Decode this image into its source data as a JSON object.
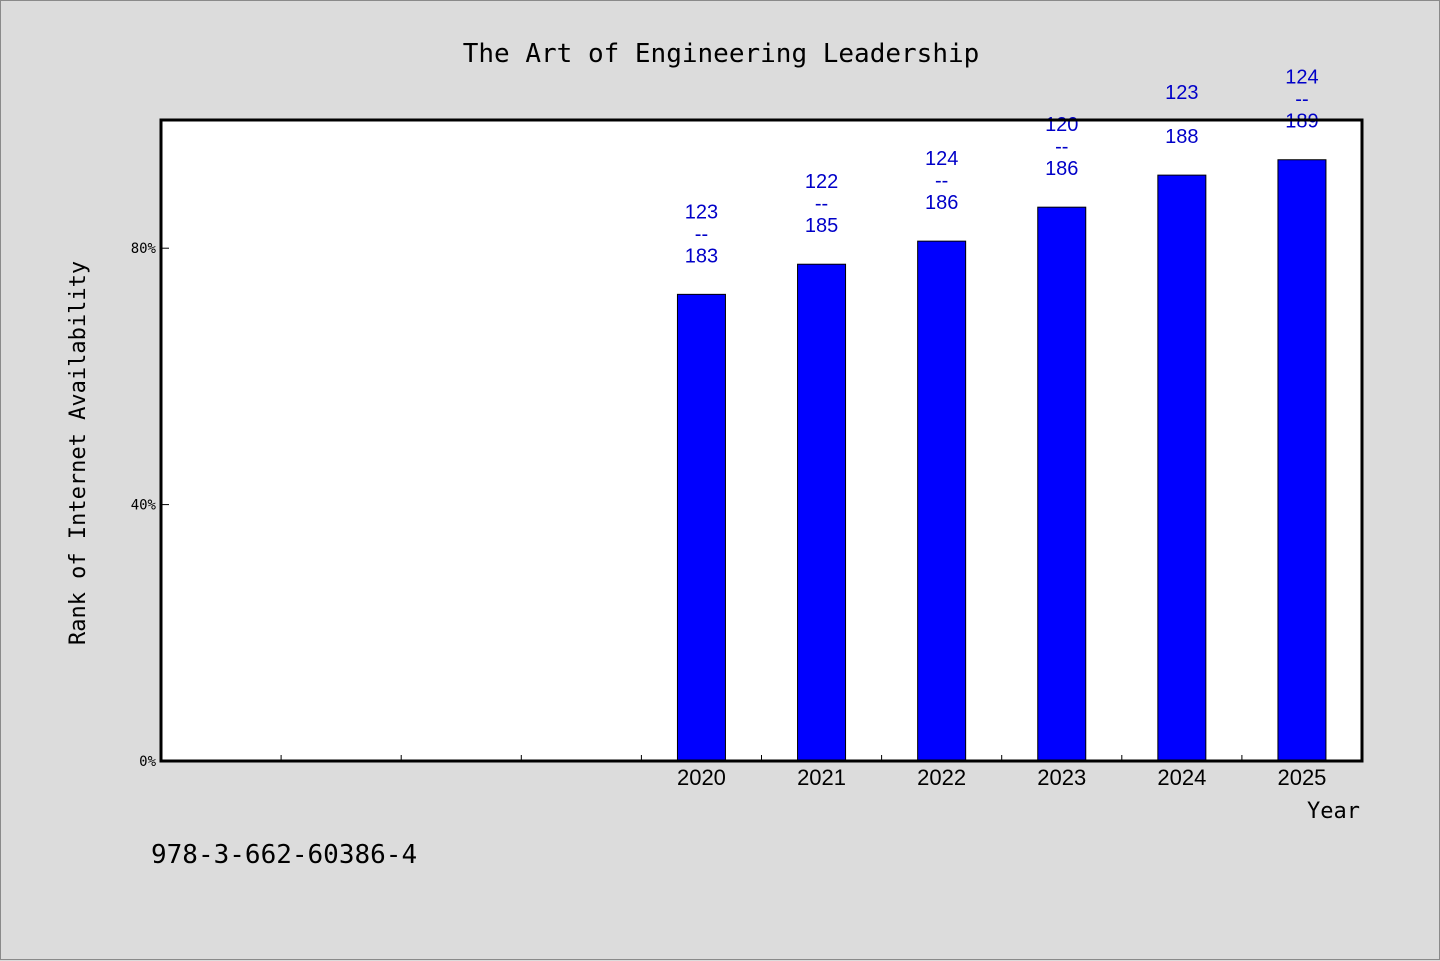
{
  "chart_data": {
    "type": "bar",
    "title": "The Art of Engineering Leadership",
    "xlabel": "Year",
    "ylabel": "Rank of Internet Availability",
    "categories": [
      "",
      "",
      "",
      "",
      "2020",
      "2021",
      "2022",
      "2023",
      "2024",
      "2025"
    ],
    "values": [
      null,
      null,
      null,
      null,
      72.8,
      77.5,
      81.1,
      86.4,
      91.4,
      93.8
    ],
    "data_labels": [
      null,
      null,
      null,
      null,
      [
        "123",
        "--",
        "183"
      ],
      [
        "122",
        "--",
        "185"
      ],
      [
        "124",
        "--",
        "186"
      ],
      [
        "120",
        "--",
        "186"
      ],
      [
        "123",
        "",
        "188"
      ],
      [
        "124",
        "--",
        "189"
      ]
    ],
    "ylim": [
      0,
      100
    ],
    "yticks": [
      0,
      40,
      80
    ],
    "ytick_labels": [
      "0%",
      "40%",
      "80%"
    ],
    "grid": false,
    "bar_color": "#0000ff",
    "label_color": "#0000c8"
  },
  "footer": {
    "code": "978-3-662-60386-4"
  }
}
